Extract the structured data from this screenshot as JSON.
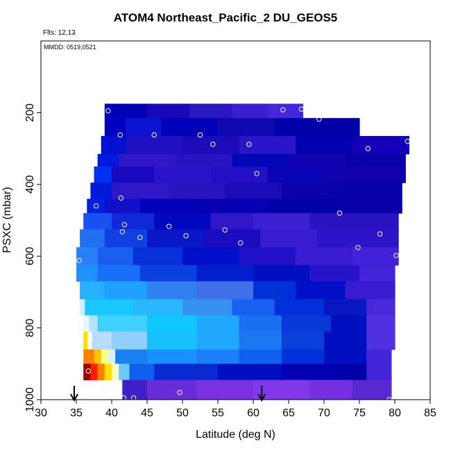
{
  "title": "ATOM4 Northeast_Pacific_2 DU_GEOS5",
  "flights_label": "Flts: 12,13",
  "mmdd_label": "MMDD: 0519,0521",
  "chart_data": {
    "type": "heatmap",
    "xlabel": "Latitude (deg N)",
    "ylabel": "PSXC (mbar)",
    "xlim": [
      30,
      85
    ],
    "ylim": [
      1000,
      0
    ],
    "x_ticks": [
      30,
      35,
      40,
      45,
      50,
      55,
      60,
      65,
      70,
      75,
      80,
      85
    ],
    "y_ticks": [
      200,
      400,
      600,
      800,
      1000
    ],
    "grid": false,
    "colors": {
      "deep_blue": "#0000a8",
      "blue": "#0010d8",
      "purple": "#4020c8",
      "violet": "#7428e0",
      "mid_blue": "#1860f0",
      "light_blue": "#2aa8ff",
      "cyan": "#18c8ff",
      "pale": "#e8f4ff",
      "yellow": "#ffe000",
      "orange": "#ff8000",
      "red": "#e00000",
      "dark_red": "#a00000"
    },
    "rows": [
      {
        "p_top": 175,
        "p_bot": 215,
        "lat_start": 39.0,
        "lat_end": 67.0,
        "segments": [
          [
            39.0,
            "#0000b8"
          ],
          [
            45,
            "#1808b8"
          ],
          [
            51,
            "#2a18c0"
          ],
          [
            57,
            "#3a1ed0"
          ],
          [
            62,
            "#4626dc"
          ]
        ]
      },
      {
        "p_top": 215,
        "p_bot": 265,
        "lat_start": 39.0,
        "lat_end": 75.0,
        "segments": [
          [
            39.0,
            "#0000c0"
          ],
          [
            42,
            "#0a14d0"
          ],
          [
            47,
            "#0000b8"
          ],
          [
            55,
            "#1008b0"
          ],
          [
            63,
            "#0000a8"
          ]
        ]
      },
      {
        "p_top": 265,
        "p_bot": 315,
        "lat_start": 38.5,
        "lat_end": 82.0,
        "segments": [
          [
            38.5,
            "#0010d0"
          ],
          [
            42,
            "#2010c0"
          ],
          [
            50,
            "#1a0cb8"
          ],
          [
            58,
            "#2a16c8"
          ],
          [
            66,
            "#0000b0"
          ],
          [
            74,
            "#1400b8"
          ]
        ]
      },
      {
        "p_top": 315,
        "p_bot": 350,
        "lat_start": 38.0,
        "lat_end": 81.5,
        "segments": [
          [
            38.0,
            "#0018e0"
          ],
          [
            41,
            "#3018c8"
          ],
          [
            49,
            "#2814c0"
          ],
          [
            57,
            "#0008b8"
          ],
          [
            65,
            "#1204b0"
          ],
          [
            73,
            "#0a00a8"
          ]
        ]
      },
      {
        "p_top": 350,
        "p_bot": 395,
        "lat_start": 37.5,
        "lat_end": 81.5,
        "segments": [
          [
            37.5,
            "#0030f0"
          ],
          [
            40,
            "#1808c0"
          ],
          [
            46,
            "#2a14c8"
          ],
          [
            54,
            "#2410c4"
          ],
          [
            62,
            "#0a04b4"
          ],
          [
            70,
            "#1000ae"
          ]
        ]
      },
      {
        "p_top": 395,
        "p_bot": 440,
        "lat_start": 37.0,
        "lat_end": 81.0,
        "segments": [
          [
            37.0,
            "#0018d8"
          ],
          [
            40,
            "#3018c8"
          ],
          [
            48,
            "#2a14c0"
          ],
          [
            56,
            "#1a0cb8"
          ],
          [
            64,
            "#0a00ac"
          ],
          [
            72,
            "#0800a8"
          ]
        ]
      },
      {
        "p_top": 440,
        "p_bot": 480,
        "lat_start": 36.5,
        "lat_end": 81.0,
        "segments": [
          [
            36.5,
            "#0020e0"
          ],
          [
            39,
            "#1010c8"
          ],
          [
            44,
            "#0000b8"
          ],
          [
            52,
            "#0600b0"
          ],
          [
            62,
            "#0000a8"
          ],
          [
            72,
            "#0800aa"
          ]
        ]
      },
      {
        "p_top": 480,
        "p_bot": 525,
        "lat_start": 36.0,
        "lat_end": 80.5,
        "segments": [
          [
            36.0,
            "#1a50f0"
          ],
          [
            40,
            "#1028d8"
          ],
          [
            46,
            "#0008c0"
          ],
          [
            54,
            "#3018c8"
          ],
          [
            60,
            "#3a20d0"
          ],
          [
            68,
            "#2a14c0"
          ]
        ]
      },
      {
        "p_top": 525,
        "p_bot": 575,
        "lat_start": 35.5,
        "lat_end": 80.5,
        "segments": [
          [
            35.5,
            "#2070f0"
          ],
          [
            39,
            "#1040e0"
          ],
          [
            45,
            "#0818c8"
          ],
          [
            53,
            "#1a0cc0"
          ],
          [
            61,
            "#3a1cd0"
          ],
          [
            69,
            "#2c14c8"
          ]
        ]
      },
      {
        "p_top": 575,
        "p_bot": 625,
        "lat_start": 35.0,
        "lat_end": 80.5,
        "segments": [
          [
            35.0,
            "#2a80f8"
          ],
          [
            38,
            "#1a60f0"
          ],
          [
            43,
            "#0830d8"
          ],
          [
            50,
            "#0010c8"
          ],
          [
            58,
            "#2010c8"
          ],
          [
            66,
            "#3a1cd0"
          ],
          [
            74,
            "#4222d8"
          ]
        ]
      },
      {
        "p_top": 625,
        "p_bot": 670,
        "lat_start": 35.0,
        "lat_end": 80.0,
        "segments": [
          [
            35.0,
            "#2090ff"
          ],
          [
            38,
            "#1870f8"
          ],
          [
            44,
            "#0a40e0"
          ],
          [
            52,
            "#0020d0"
          ],
          [
            60,
            "#0010c0"
          ],
          [
            68,
            "#2814c8"
          ],
          [
            75,
            "#4424d8"
          ]
        ]
      },
      {
        "p_top": 670,
        "p_bot": 720,
        "lat_start": 35.5,
        "lat_end": 80.0,
        "segments": [
          [
            35.5,
            "#28b0ff"
          ],
          [
            39,
            "#20a0ff"
          ],
          [
            45,
            "#3080f0"
          ],
          [
            52,
            "#4070e8"
          ],
          [
            60,
            "#0030d8"
          ],
          [
            66,
            "#0010c8"
          ],
          [
            73,
            "#3a1cd0"
          ]
        ]
      },
      {
        "p_top": 720,
        "p_bot": 765,
        "lat_start": 35.5,
        "lat_end": 80.0,
        "segments": [
          [
            35.5,
            "#d0ecff"
          ],
          [
            36.2,
            "#18c8ff"
          ],
          [
            43,
            "#28b8ff"
          ],
          [
            50,
            "#3890f0"
          ],
          [
            57,
            "#1860f0"
          ],
          [
            63,
            "#0030d8"
          ],
          [
            70,
            "#0818c0"
          ],
          [
            76,
            "#4a28d8"
          ]
        ]
      },
      {
        "p_top": 765,
        "p_bot": 810,
        "lat_start": 36.0,
        "lat_end": 80.0,
        "segments": [
          [
            36.0,
            "#e8f8ff"
          ],
          [
            36.8,
            "#b0e4ff"
          ],
          [
            38,
            "#40d0ff"
          ],
          [
            45,
            "#10c8ff"
          ],
          [
            52,
            "#20a8ff"
          ],
          [
            58,
            "#1a70f0"
          ],
          [
            64,
            "#0838d8"
          ],
          [
            71,
            "#0010c0"
          ],
          [
            76,
            "#5030e0"
          ]
        ]
      },
      {
        "p_top": 810,
        "p_bot": 860,
        "lat_start": 36.0,
        "lat_end": 80.0,
        "segments": [
          [
            36.0,
            "#ffe000"
          ],
          [
            36.6,
            "#fffce0"
          ],
          [
            37.2,
            "#b8dcff"
          ],
          [
            40,
            "#90d0ff"
          ],
          [
            45,
            "#18c0ff"
          ],
          [
            52,
            "#20a8ff"
          ],
          [
            58,
            "#1a78f0"
          ],
          [
            64,
            "#0840d8"
          ],
          [
            70,
            "#0010c0"
          ],
          [
            76,
            "#5030e0"
          ]
        ]
      },
      {
        "p_top": 860,
        "p_bot": 900,
        "lat_start": 36.0,
        "lat_end": 79.5,
        "segments": [
          [
            36.0,
            "#ff8000"
          ],
          [
            37.5,
            "#ffc000"
          ],
          [
            38.5,
            "#ffff80"
          ],
          [
            39.5,
            "#d8f0ff"
          ],
          [
            40.5,
            "#1880f0"
          ],
          [
            45,
            "#1890ff"
          ],
          [
            52,
            "#1a80f8"
          ],
          [
            58,
            "#1060f0"
          ],
          [
            64,
            "#0030d8"
          ],
          [
            70,
            "#0010c0"
          ],
          [
            76,
            "#4424d8"
          ]
        ]
      },
      {
        "p_top": 900,
        "p_bot": 945,
        "lat_start": 36.0,
        "lat_end": 79.5,
        "segments": [
          [
            36.0,
            "#a00000"
          ],
          [
            37,
            "#ff2000"
          ],
          [
            38,
            "#ff8000"
          ],
          [
            39,
            "#ffe000"
          ],
          [
            40,
            "#ffffc0"
          ],
          [
            41,
            "#70c8ff"
          ],
          [
            42.5,
            "#1060f0"
          ],
          [
            46,
            "#0828d0"
          ],
          [
            55,
            "#0010c0"
          ],
          [
            64,
            "#0000b0"
          ],
          [
            72,
            "#0000a8"
          ],
          [
            76,
            "#4424d8"
          ]
        ]
      },
      {
        "p_top": 945,
        "p_bot": 1000,
        "lat_start": 41.5,
        "lat_end": 79.5,
        "segments": [
          [
            41.5,
            "#4020c8"
          ],
          [
            45,
            "#6a2cd8"
          ],
          [
            52,
            "#7a30e0"
          ],
          [
            60,
            "#8038e8"
          ],
          [
            68,
            "#7430e0"
          ],
          [
            74,
            "#5a28d0"
          ]
        ]
      }
    ],
    "points": [
      {
        "lat": 39.5,
        "p": 195
      },
      {
        "lat": 64.2,
        "p": 192
      },
      {
        "lat": 66.8,
        "p": 190
      },
      {
        "lat": 69.3,
        "p": 218
      },
      {
        "lat": 41.2,
        "p": 262
      },
      {
        "lat": 46.0,
        "p": 262
      },
      {
        "lat": 52.5,
        "p": 262
      },
      {
        "lat": 54.3,
        "p": 288
      },
      {
        "lat": 59.4,
        "p": 288
      },
      {
        "lat": 76.2,
        "p": 300
      },
      {
        "lat": 81.8,
        "p": 280
      },
      {
        "lat": 60.5,
        "p": 370
      },
      {
        "lat": 41.3,
        "p": 438
      },
      {
        "lat": 37.8,
        "p": 460
      },
      {
        "lat": 41.8,
        "p": 512
      },
      {
        "lat": 41.5,
        "p": 532
      },
      {
        "lat": 44.0,
        "p": 548
      },
      {
        "lat": 48.1,
        "p": 517
      },
      {
        "lat": 50.5,
        "p": 543
      },
      {
        "lat": 56.0,
        "p": 527
      },
      {
        "lat": 58.2,
        "p": 563
      },
      {
        "lat": 72.2,
        "p": 480
      },
      {
        "lat": 77.9,
        "p": 538
      },
      {
        "lat": 74.8,
        "p": 576
      },
      {
        "lat": 80.2,
        "p": 598
      },
      {
        "lat": 35.4,
        "p": 612
      },
      {
        "lat": 36.9,
        "p": 832
      },
      {
        "lat": 36.7,
        "p": 920
      },
      {
        "lat": 36.3,
        "p": 955
      },
      {
        "lat": 41.7,
        "p": 995
      },
      {
        "lat": 43.1,
        "p": 995
      },
      {
        "lat": 49.6,
        "p": 980
      },
      {
        "lat": 79.2,
        "p": 1000
      }
    ],
    "arrows": [
      {
        "lat": 34.7
      },
      {
        "lat": 61.2
      }
    ]
  }
}
